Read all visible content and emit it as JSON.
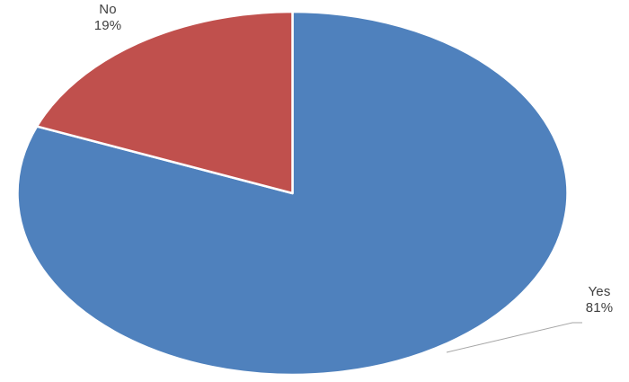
{
  "chart_data": {
    "type": "pie",
    "title": "",
    "categories": [
      "Yes",
      "No"
    ],
    "values": [
      81,
      19
    ],
    "unit": "percent",
    "colors": [
      "#4F81BD",
      "#C0504D"
    ],
    "slice_labels": [
      {
        "name": "Yes",
        "percent": "81%"
      },
      {
        "name": "No",
        "percent": "19%"
      }
    ],
    "start_angle_deg": 0,
    "direction": "clockwise",
    "legend_position": "none",
    "grid": "off",
    "label_style": {
      "color": "#404040",
      "leader_line_color": "#A6A6A6"
    },
    "background_color": "#FFFFFF",
    "slice_separator_color": "#FFFFFF"
  }
}
